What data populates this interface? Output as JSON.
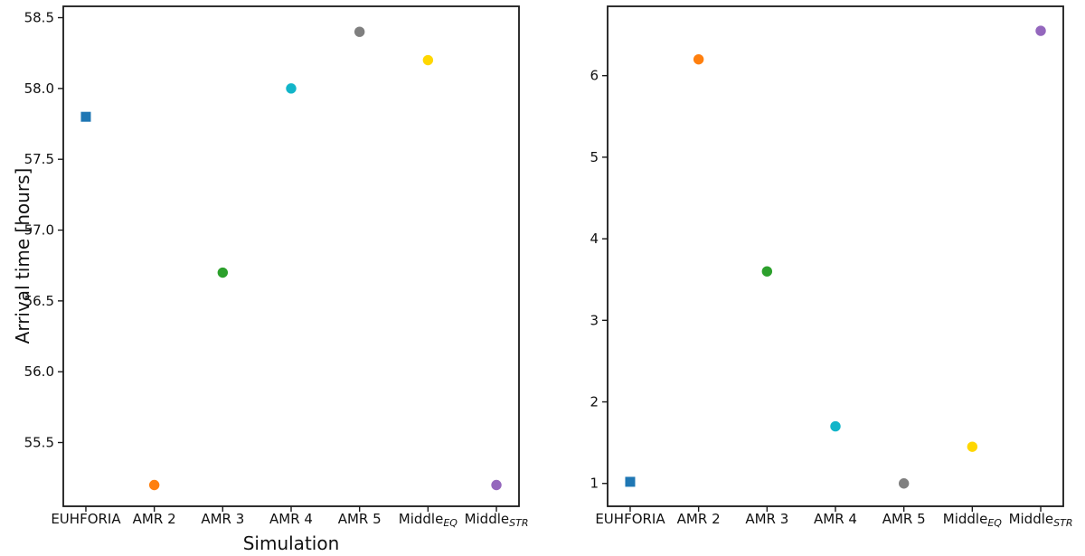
{
  "figure": {
    "background": "#ffffff"
  },
  "chart_data": [
    {
      "type": "scatter",
      "panel": "left",
      "title": "",
      "xlabel": "Simulation",
      "ylabel": "Arrival time [hours]",
      "grid": false,
      "legend": null,
      "categories": [
        {
          "label": "EUHFORIA",
          "sub": ""
        },
        {
          "label": "AMR 2",
          "sub": ""
        },
        {
          "label": "AMR 3",
          "sub": ""
        },
        {
          "label": "AMR 4",
          "sub": ""
        },
        {
          "label": "AMR 5",
          "sub": ""
        },
        {
          "label": "Middle",
          "sub": "EQ"
        },
        {
          "label": "Middle",
          "sub": "STR"
        }
      ],
      "values": [
        57.8,
        55.2,
        56.7,
        58.0,
        58.4,
        58.2,
        55.2
      ],
      "markers": [
        "square",
        "circle",
        "circle",
        "circle",
        "circle",
        "circle",
        "circle"
      ],
      "colors": [
        "#1f77b4",
        "#ff7f0e",
        "#2ca02c",
        "#12b5c9",
        "#7f7f7f",
        "#ffd700",
        "#9467bd"
      ],
      "yticks": [
        55.5,
        56.0,
        56.5,
        57.0,
        57.5,
        58.0,
        58.5
      ],
      "ytick_labels": [
        "55.5",
        "56.0",
        "56.5",
        "57.0",
        "57.5",
        "58.0",
        "58.5"
      ],
      "ylim": [
        55.05,
        58.58
      ]
    },
    {
      "type": "scatter",
      "panel": "right",
      "title": "",
      "xlabel": "",
      "ylabel": "",
      "grid": false,
      "legend": null,
      "categories": [
        {
          "label": "EUHFORIA",
          "sub": ""
        },
        {
          "label": "AMR 2",
          "sub": ""
        },
        {
          "label": "AMR 3",
          "sub": ""
        },
        {
          "label": "AMR 4",
          "sub": ""
        },
        {
          "label": "AMR 5",
          "sub": ""
        },
        {
          "label": "Middle",
          "sub": "EQ"
        },
        {
          "label": "Middle",
          "sub": "STR"
        }
      ],
      "values": [
        1.02,
        6.2,
        3.6,
        1.7,
        1.0,
        1.45,
        6.55
      ],
      "markers": [
        "square",
        "circle",
        "circle",
        "circle",
        "circle",
        "circle",
        "circle"
      ],
      "colors": [
        "#1f77b4",
        "#ff7f0e",
        "#2ca02c",
        "#12b5c9",
        "#7f7f7f",
        "#ffd700",
        "#9467bd"
      ],
      "yticks": [
        1,
        2,
        3,
        4,
        5,
        6
      ],
      "ytick_labels": [
        "1",
        "2",
        "3",
        "4",
        "5",
        "6"
      ],
      "ylim": [
        0.72,
        6.85
      ]
    }
  ]
}
